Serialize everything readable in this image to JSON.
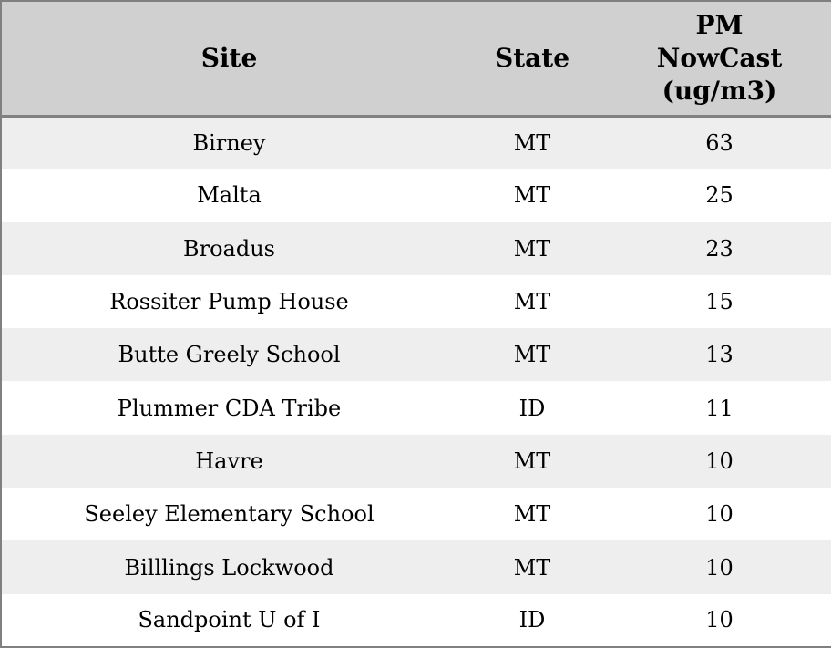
{
  "chart_data": {
    "type": "table",
    "columns": [
      "Site",
      "State",
      "PM NowCast (ug/m3)"
    ],
    "rows": [
      [
        "Birney",
        "MT",
        63
      ],
      [
        "Malta",
        "MT",
        25
      ],
      [
        "Broadus",
        "MT",
        23
      ],
      [
        "Rossiter Pump House",
        "MT",
        15
      ],
      [
        "Butte Greely School",
        "MT",
        13
      ],
      [
        "Plummer CDA Tribe",
        "ID",
        11
      ],
      [
        "Havre",
        "MT",
        10
      ],
      [
        "Seeley Elementary School",
        "MT",
        10
      ],
      [
        "Billlings Lockwood",
        "MT",
        10
      ],
      [
        "Sandpoint U of I",
        "ID",
        10
      ]
    ]
  },
  "table": {
    "header": {
      "site": "Site",
      "state": "State",
      "pm": "PM\nNowCast\n(ug/m3)"
    },
    "rows": [
      {
        "site": "Birney",
        "state": "MT",
        "pm": "63"
      },
      {
        "site": "Malta",
        "state": "MT",
        "pm": "25"
      },
      {
        "site": "Broadus",
        "state": "MT",
        "pm": "23"
      },
      {
        "site": "Rossiter Pump House",
        "state": "MT",
        "pm": "15"
      },
      {
        "site": "Butte Greely School",
        "state": "MT",
        "pm": "13"
      },
      {
        "site": "Plummer CDA Tribe",
        "state": "ID",
        "pm": "11"
      },
      {
        "site": "Havre",
        "state": "MT",
        "pm": "10"
      },
      {
        "site": "Seeley Elementary School",
        "state": "MT",
        "pm": "10"
      },
      {
        "site": "Billlings Lockwood",
        "state": "MT",
        "pm": "10"
      },
      {
        "site": "Sandpoint U of I",
        "state": "ID",
        "pm": "10"
      }
    ]
  },
  "colors": {
    "header_bg": "#d0d0d0",
    "row_alt_bg": "#eeeeee",
    "row_bg": "#ffffff",
    "border": "#808080",
    "text": "#000000"
  }
}
